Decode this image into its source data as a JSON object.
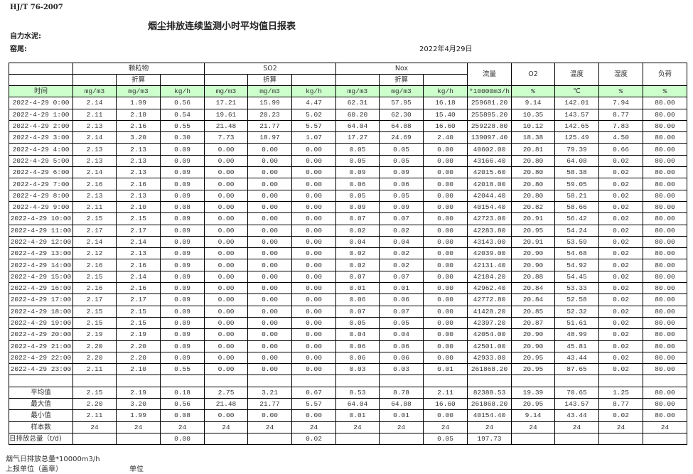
{
  "standard": "HJ/T  76-2007",
  "title": "烟尘排放连续监测小时平均值日报表",
  "company_label": "自力水泥:",
  "kiln_label": "窑尾:",
  "report_date": "2022年4月29日",
  "header": {
    "groups": [
      "颗粒物",
      "SO2",
      "Nox"
    ],
    "converted": "折算",
    "single": [
      "流量",
      "O2",
      "温度",
      "湿度",
      "负荷"
    ],
    "units": [
      "时间",
      "mg/m3",
      "mg/m3",
      "kg/h",
      "mg/m3",
      "mg/m3",
      "kg/h",
      "mg/m3",
      "mg/m3",
      "kg/h",
      "*10000m3/h",
      "%",
      "℃",
      "%",
      "%"
    ]
  },
  "rows": [
    [
      "2022-4-29 0:00",
      "2.14",
      "1.99",
      "0.56",
      "17.21",
      "15.99",
      "4.47",
      "62.31",
      "57.95",
      "16.18",
      "259681.20",
      "9.14",
      "142.01",
      "7.94",
      "80.00"
    ],
    [
      "2022-4-29 1:00",
      "2.11",
      "2.18",
      "0.54",
      "19.61",
      "20.23",
      "5.02",
      "60.20",
      "62.30",
      "15.40",
      "255895.20",
      "10.35",
      "143.57",
      "8.77",
      "80.00"
    ],
    [
      "2022-4-29 2:00",
      "2.13",
      "2.16",
      "0.55",
      "21.48",
      "21.77",
      "5.57",
      "64.04",
      "64.88",
      "16.60",
      "259228.80",
      "10.12",
      "142.65",
      "7.83",
      "80.00"
    ],
    [
      "2022-4-29 3:00",
      "2.14",
      "3.20",
      "0.30",
      "7.73",
      "18.97",
      "1.07",
      "17.27",
      "24.69",
      "2.40",
      "139097.40",
      "18.38",
      "125.49",
      "4.50",
      "80.00"
    ],
    [
      "2022-4-29 4:00",
      "2.13",
      "2.13",
      "0.09",
      "0.00",
      "0.00",
      "0.00",
      "0.05",
      "0.05",
      "0.00",
      "40602.00",
      "20.81",
      "79.39",
      "0.66",
      "80.00"
    ],
    [
      "2022-4-29 5:00",
      "2.13",
      "2.13",
      "0.09",
      "0.00",
      "0.00",
      "0.00",
      "0.05",
      "0.05",
      "0.00",
      "43166.40",
      "20.80",
      "64.08",
      "0.02",
      "80.00"
    ],
    [
      "2022-4-29 6:00",
      "2.14",
      "2.13",
      "0.09",
      "0.00",
      "0.00",
      "0.00",
      "0.09",
      "0.09",
      "0.00",
      "42015.60",
      "20.80",
      "58.38",
      "0.02",
      "80.00"
    ],
    [
      "2022-4-29 7:00",
      "2.16",
      "2.16",
      "0.09",
      "0.00",
      "0.00",
      "0.00",
      "0.06",
      "0.06",
      "0.00",
      "42018.00",
      "20.80",
      "59.05",
      "0.02",
      "80.00"
    ],
    [
      "2022-4-29 8:00",
      "2.13",
      "2.13",
      "0.09",
      "0.00",
      "0.00",
      "0.00",
      "0.05",
      "0.05",
      "0.00",
      "42044.40",
      "20.80",
      "58.21",
      "0.02",
      "80.00"
    ],
    [
      "2022-4-29 9:00",
      "2.11",
      "2.10",
      "0.08",
      "0.00",
      "0.00",
      "0.00",
      "0.09",
      "0.09",
      "0.00",
      "40154.40",
      "20.82",
      "58.66",
      "0.02",
      "80.00"
    ],
    [
      "2022-4-29 10:00",
      "2.15",
      "2.15",
      "0.09",
      "0.00",
      "0.00",
      "0.00",
      "0.07",
      "0.07",
      "0.00",
      "42723.00",
      "20.91",
      "56.42",
      "0.02",
      "80.00"
    ],
    [
      "2022-4-29 11:00",
      "2.17",
      "2.17",
      "0.09",
      "0.00",
      "0.00",
      "0.00",
      "0.02",
      "0.02",
      "0.00",
      "42283.80",
      "20.95",
      "54.24",
      "0.02",
      "80.00"
    ],
    [
      "2022-4-29 12:00",
      "2.14",
      "2.14",
      "0.09",
      "0.00",
      "0.00",
      "0.00",
      "0.04",
      "0.04",
      "0.00",
      "43143.00",
      "20.91",
      "53.59",
      "0.02",
      "80.00"
    ],
    [
      "2022-4-29 13:00",
      "2.12",
      "2.13",
      "0.09",
      "0.00",
      "0.00",
      "0.00",
      "0.02",
      "0.02",
      "0.00",
      "42039.00",
      "20.90",
      "54.68",
      "0.02",
      "80.00"
    ],
    [
      "2022-4-29 14:00",
      "2.16",
      "2.16",
      "0.09",
      "0.00",
      "0.00",
      "0.00",
      "0.02",
      "0.02",
      "0.00",
      "42131.40",
      "20.90",
      "54.92",
      "0.02",
      "80.00"
    ],
    [
      "2022-4-29 15:00",
      "2.15",
      "2.14",
      "0.09",
      "0.00",
      "0.00",
      "0.00",
      "0.07",
      "0.07",
      "0.00",
      "42184.20",
      "20.88",
      "54.45",
      "0.02",
      "80.00"
    ],
    [
      "2022-4-29 16:00",
      "2.16",
      "2.16",
      "0.09",
      "0.00",
      "0.00",
      "0.00",
      "0.01",
      "0.01",
      "0.00",
      "42962.40",
      "20.84",
      "53.33",
      "0.02",
      "80.00"
    ],
    [
      "2022-4-29 17:00",
      "2.17",
      "2.17",
      "0.09",
      "0.00",
      "0.00",
      "0.00",
      "0.06",
      "0.06",
      "0.00",
      "42772.80",
      "20.84",
      "52.58",
      "0.02",
      "80.00"
    ],
    [
      "2022-4-29 18:00",
      "2.15",
      "2.15",
      "0.09",
      "0.00",
      "0.00",
      "0.00",
      "0.07",
      "0.07",
      "0.00",
      "41428.20",
      "20.85",
      "52.32",
      "0.02",
      "80.00"
    ],
    [
      "2022-4-29 19:00",
      "2.15",
      "2.15",
      "0.09",
      "0.00",
      "0.00",
      "0.00",
      "0.05",
      "0.05",
      "0.00",
      "42397.20",
      "20.87",
      "51.61",
      "0.02",
      "80.00"
    ],
    [
      "2022-4-29 20:00",
      "2.19",
      "2.19",
      "0.09",
      "0.00",
      "0.00",
      "0.00",
      "0.04",
      "0.04",
      "0.00",
      "42054.00",
      "20.90",
      "48.99",
      "0.02",
      "80.00"
    ],
    [
      "2022-4-29 21:00",
      "2.20",
      "2.20",
      "0.09",
      "0.00",
      "0.00",
      "0.00",
      "0.06",
      "0.06",
      "0.00",
      "42501.00",
      "20.90",
      "45.81",
      "0.02",
      "80.00"
    ],
    [
      "2022-4-29 22:00",
      "2.20",
      "2.20",
      "0.09",
      "0.00",
      "0.00",
      "0.00",
      "0.06",
      "0.06",
      "0.00",
      "42933.00",
      "20.95",
      "43.44",
      "0.02",
      "80.00"
    ],
    [
      "2022-4-29 23:00",
      "2.11",
      "2.10",
      "0.55",
      "0.00",
      "0.00",
      "0.00",
      "0.03",
      "0.03",
      "0.01",
      "261868.20",
      "20.95",
      "87.65",
      "0.02",
      "80.00"
    ]
  ],
  "summary": [
    [
      "平均值",
      "2.15",
      "2.19",
      "0.18",
      "2.75",
      "3.21",
      "0.67",
      "8.53",
      "8.78",
      "2.11",
      "82388.53",
      "19.39",
      "70.65",
      "1.25",
      "80.00"
    ],
    [
      "最大值",
      "2.20",
      "3.20",
      "0.56",
      "21.48",
      "21.77",
      "5.57",
      "64.04",
      "64.88",
      "16.60",
      "261868.20",
      "20.95",
      "143.57",
      "8.77",
      "80.00"
    ],
    [
      "最小值",
      "2.11",
      "1.99",
      "0.08",
      "0.00",
      "0.00",
      "0.00",
      "0.01",
      "0.01",
      "0.00",
      "40154.40",
      "9.14",
      "43.44",
      "0.02",
      "80.00"
    ],
    [
      "样本数",
      "24",
      "24",
      "24",
      "24",
      "24",
      "24",
      "24",
      "24",
      "24",
      "24",
      "24",
      "24",
      "24",
      "24"
    ]
  ],
  "daily_total": [
    "日排放总量（t/d)",
    "",
    "",
    "0.00",
    "",
    "",
    "0.02",
    "",
    "",
    "0.05",
    "197.73",
    "",
    "",
    "",
    ""
  ],
  "footer": {
    "flue_gas_total": "烟气日排放总量*10000m3/h",
    "reporter": "上报单位（盖章）",
    "unit": "单位"
  }
}
